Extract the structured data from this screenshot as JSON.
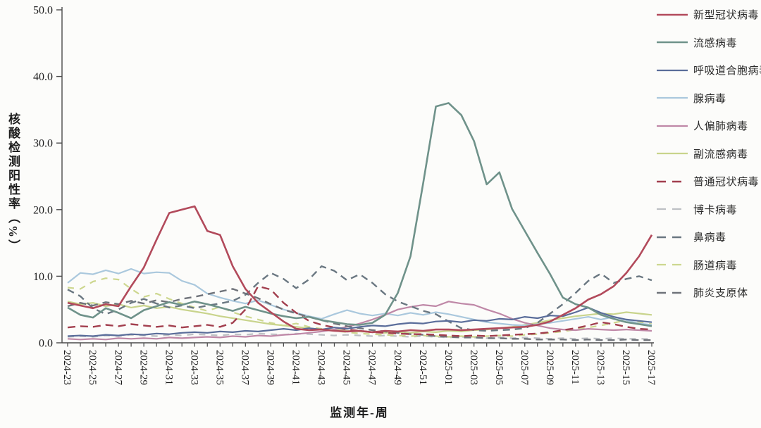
{
  "chart_data": {
    "type": "line",
    "title": "",
    "xlabel": "监测年-周",
    "ylabel": "核酸检测阳性率（%）",
    "ylim": [
      0,
      50
    ],
    "ytick_labels": [
      "0.0",
      "10.0",
      "20.0",
      "30.0",
      "40.0",
      "50.0"
    ],
    "ytick_values": [
      0,
      10,
      20,
      30,
      40,
      50
    ],
    "grid": false,
    "legend_position": "right",
    "xtick_label_every": 2,
    "xtick_labels_shown": [
      "2024-23",
      "2024-25",
      "2024-27",
      "2024-29",
      "2024-31",
      "2024-33",
      "2024-35",
      "2024-37",
      "2024-39",
      "2024-41",
      "2024-43",
      "2024-45",
      "2024-47",
      "2024-49",
      "2024-51",
      "2025-01",
      "2025-03",
      "2025-05",
      "2025-07",
      "2025-09",
      "2025-11",
      "2025-13",
      "2025-15",
      "2025-17"
    ],
    "x": [
      "2024-23",
      "2024-24",
      "2024-25",
      "2024-26",
      "2024-27",
      "2024-28",
      "2024-29",
      "2024-30",
      "2024-31",
      "2024-32",
      "2024-33",
      "2024-34",
      "2024-35",
      "2024-36",
      "2024-37",
      "2024-38",
      "2024-39",
      "2024-40",
      "2024-41",
      "2024-42",
      "2024-43",
      "2024-44",
      "2024-45",
      "2024-46",
      "2024-47",
      "2024-48",
      "2024-49",
      "2024-50",
      "2024-51",
      "2024-52",
      "2025-01",
      "2025-02",
      "2025-03",
      "2025-04",
      "2025-05",
      "2025-06",
      "2025-07",
      "2025-08",
      "2025-09",
      "2025-10",
      "2025-11",
      "2025-12",
      "2025-13",
      "2025-14",
      "2025-15",
      "2025-16",
      "2025-17"
    ],
    "series": [
      {
        "name": "新型冠状病毒",
        "key": "novel-coronavirus",
        "color": "#b24a5b",
        "dash": false,
        "width": 2.6,
        "z": 11,
        "values": [
          6.0,
          5.6,
          5.2,
          5.8,
          5.5,
          8.5,
          11.3,
          15.5,
          19.5,
          20.0,
          20.5,
          16.8,
          16.2,
          11.5,
          8.1,
          6.0,
          4.6,
          3.2,
          2.1,
          1.9,
          2.0,
          1.8,
          1.7,
          1.8,
          1.6,
          1.8,
          1.7,
          1.9,
          1.8,
          2.0,
          2.0,
          1.9,
          2.0,
          2.1,
          2.2,
          2.3,
          2.4,
          2.7,
          3.2,
          4.2,
          5.2,
          6.5,
          7.3,
          8.5,
          10.5,
          13.0,
          16.2
        ]
      },
      {
        "name": "流感病毒",
        "key": "influenza-virus",
        "color": "#6f928a",
        "dash": false,
        "width": 2.6,
        "z": 10,
        "values": [
          5.3,
          4.2,
          3.8,
          5.2,
          4.5,
          3.7,
          4.9,
          5.5,
          6.1,
          5.7,
          6.2,
          5.8,
          5.3,
          4.8,
          5.4,
          4.9,
          4.4,
          4.0,
          3.7,
          3.9,
          3.4,
          3.1,
          2.8,
          2.7,
          3.0,
          4.2,
          7.5,
          13.0,
          24.0,
          35.5,
          36.0,
          34.2,
          30.3,
          23.8,
          25.6,
          20.1,
          16.8,
          13.5,
          10.3,
          6.8,
          5.8,
          5.3,
          4.2,
          3.6,
          3.1,
          2.8,
          2.5
        ]
      },
      {
        "name": "呼吸道合胞病毒",
        "key": "respiratory-syncytial-virus",
        "color": "#5a6d9a",
        "dash": false,
        "width": 2.2,
        "z": 9,
        "values": [
          1.0,
          1.1,
          1.0,
          1.2,
          1.1,
          1.3,
          1.2,
          1.4,
          1.3,
          1.5,
          1.6,
          1.5,
          1.7,
          1.6,
          1.8,
          1.7,
          1.9,
          2.1,
          1.9,
          2.2,
          2.0,
          2.3,
          2.1,
          2.4,
          2.6,
          2.5,
          2.8,
          3.0,
          2.9,
          3.2,
          3.3,
          3.1,
          3.4,
          3.3,
          3.6,
          3.5,
          3.9,
          3.7,
          4.1,
          4.0,
          4.6,
          5.3,
          4.5,
          3.9,
          3.5,
          3.3,
          3.1
        ]
      },
      {
        "name": "腺病毒",
        "key": "adenovirus",
        "color": "#aac8dd",
        "dash": false,
        "width": 2.2,
        "z": 4,
        "values": [
          9.0,
          10.5,
          10.3,
          10.9,
          10.4,
          11.1,
          10.4,
          10.6,
          10.5,
          9.3,
          8.7,
          7.4,
          6.8,
          6.3,
          5.9,
          6.4,
          5.7,
          5.0,
          4.5,
          4.0,
          3.6,
          4.3,
          4.9,
          4.4,
          4.1,
          4.4,
          4.1,
          4.5,
          4.2,
          4.6,
          4.3,
          3.9,
          3.5,
          3.1,
          2.9,
          2.7,
          2.6,
          2.8,
          3.0,
          3.3,
          3.6,
          3.9,
          3.5,
          3.9,
          3.4,
          2.9,
          2.7
        ]
      },
      {
        "name": "人偏肺病毒",
        "key": "human-metapneumovirus",
        "color": "#bf88a7",
        "dash": false,
        "width": 2.2,
        "z": 5,
        "values": [
          0.6,
          0.5,
          0.6,
          0.5,
          0.7,
          0.6,
          0.7,
          0.6,
          0.8,
          0.7,
          0.8,
          0.9,
          0.8,
          1.0,
          0.9,
          1.1,
          1.0,
          1.2,
          1.3,
          1.5,
          1.7,
          2.0,
          2.4,
          2.9,
          3.5,
          4.2,
          5.0,
          5.4,
          5.7,
          5.5,
          6.2,
          5.9,
          5.7,
          5.0,
          4.4,
          3.6,
          3.0,
          2.6,
          2.2,
          2.0,
          1.9,
          2.1,
          2.0,
          1.9,
          2.0,
          1.9,
          1.8
        ]
      },
      {
        "name": "副流感病毒",
        "key": "parainfluenza-virus",
        "color": "#c9d48c",
        "dash": false,
        "width": 2.2,
        "z": 3,
        "values": [
          6.2,
          5.8,
          6.0,
          5.5,
          5.8,
          5.3,
          5.6,
          5.2,
          5.4,
          5.0,
          4.7,
          4.4,
          4.0,
          3.7,
          3.4,
          3.1,
          2.8,
          2.6,
          2.4,
          2.2,
          2.0,
          1.9,
          1.8,
          1.7,
          1.6,
          1.5,
          1.6,
          1.5,
          1.7,
          1.6,
          1.8,
          1.7,
          1.9,
          2.0,
          2.2,
          2.4,
          2.7,
          3.0,
          3.4,
          3.7,
          4.0,
          4.2,
          4.4,
          4.3,
          4.6,
          4.4,
          4.2
        ]
      },
      {
        "name": "普通冠状病毒",
        "key": "seasonal-coronavirus",
        "color": "#a23f4e",
        "dash": true,
        "dasharray": "11 7",
        "width": 2.4,
        "z": 8,
        "values": [
          2.3,
          2.5,
          2.4,
          2.7,
          2.5,
          2.8,
          2.6,
          2.4,
          2.6,
          2.3,
          2.5,
          2.7,
          2.4,
          3.0,
          5.0,
          8.5,
          8.0,
          6.0,
          4.5,
          3.3,
          2.7,
          2.3,
          2.0,
          1.8,
          1.6,
          1.5,
          1.4,
          1.3,
          1.3,
          1.2,
          1.1,
          1.0,
          1.1,
          1.0,
          1.1,
          1.2,
          1.3,
          1.4,
          1.6,
          1.9,
          2.2,
          2.6,
          3.1,
          2.8,
          2.4,
          2.1,
          2.0
        ]
      },
      {
        "name": "博卡病毒",
        "key": "bocavirus",
        "color": "#bdc0c4",
        "dash": true,
        "dasharray": "9 8",
        "width": 2.2,
        "z": 1,
        "values": [
          0.9,
          1.0,
          0.9,
          1.1,
          1.0,
          1.2,
          1.1,
          1.0,
          1.2,
          1.1,
          1.3,
          1.2,
          1.1,
          1.3,
          1.2,
          1.4,
          1.3,
          1.2,
          1.4,
          1.3,
          1.2,
          1.1,
          1.2,
          1.1,
          1.0,
          1.1,
          1.0,
          0.9,
          1.0,
          0.9,
          0.8,
          0.9,
          0.8,
          0.7,
          0.8,
          0.7,
          0.8,
          0.7,
          0.6,
          0.7,
          0.6,
          0.7,
          0.6,
          0.7,
          0.6,
          0.6,
          0.6
        ]
      },
      {
        "name": "鼻病毒",
        "key": "rhinovirus",
        "color": "#6a7781",
        "dash": true,
        "dasharray": "10 7",
        "width": 2.4,
        "z": 7,
        "values": [
          8.0,
          7.0,
          5.2,
          4.3,
          5.0,
          6.0,
          6.6,
          5.9,
          5.3,
          5.6,
          5.2,
          5.6,
          5.9,
          6.3,
          7.2,
          9.0,
          10.5,
          9.6,
          8.2,
          9.5,
          11.5,
          10.8,
          9.4,
          10.3,
          9.0,
          7.3,
          6.2,
          5.5,
          4.8,
          4.3,
          3.2,
          2.2,
          1.9,
          1.8,
          1.9,
          2.0,
          2.2,
          3.0,
          4.4,
          5.8,
          7.5,
          9.3,
          10.4,
          9.0,
          9.6,
          10.0,
          9.4
        ]
      },
      {
        "name": "肠道病毒",
        "key": "enterovirus",
        "color": "#cdd78f",
        "dash": true,
        "dasharray": "9 8",
        "width": 2.2,
        "z": 2,
        "values": [
          8.3,
          8.1,
          9.2,
          9.7,
          9.5,
          8.1,
          6.9,
          7.4,
          6.6,
          5.9,
          5.3,
          4.8,
          5.4,
          4.6,
          4.0,
          3.5,
          3.0,
          2.6,
          2.9,
          2.4,
          2.1,
          1.8,
          1.6,
          1.4,
          1.3,
          1.2,
          1.1,
          1.0,
          1.1,
          1.0,
          0.9,
          1.0,
          0.9,
          1.0,
          1.1,
          1.0,
          1.2,
          1.3,
          1.5,
          1.7,
          2.0,
          2.3,
          2.6,
          3.0,
          3.4,
          3.1,
          2.8
        ]
      },
      {
        "name": "肺炎支原体",
        "key": "mycoplasma-pneumoniae",
        "color": "#6f737a",
        "dash": true,
        "dasharray": "10 7",
        "width": 2.4,
        "z": 6,
        "values": [
          5.5,
          6.0,
          5.6,
          6.1,
          5.8,
          6.3,
          5.9,
          6.4,
          6.1,
          6.6,
          6.9,
          7.3,
          7.7,
          8.1,
          7.4,
          6.7,
          5.8,
          5.0,
          4.4,
          3.9,
          3.4,
          2.9,
          2.5,
          2.2,
          1.9,
          1.7,
          1.5,
          1.3,
          1.2,
          1.0,
          0.9,
          0.8,
          0.8,
          0.7,
          0.7,
          0.6,
          0.6,
          0.5,
          0.5,
          0.5,
          0.4,
          0.5,
          0.4,
          0.4,
          0.5,
          0.4,
          0.4
        ]
      }
    ],
    "axis_color": "#4a4a4a",
    "tick_label_color": "#1c1c1c"
  }
}
